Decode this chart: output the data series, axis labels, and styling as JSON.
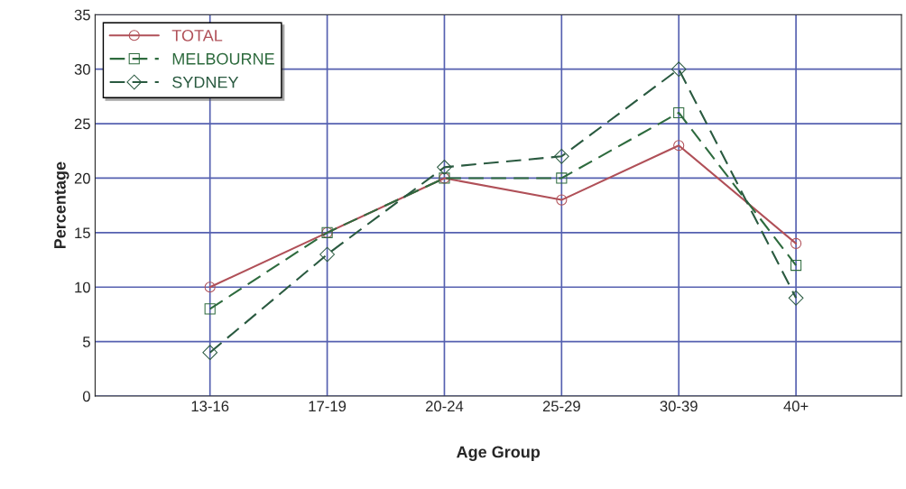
{
  "chart_data": {
    "type": "line",
    "xlabel": "Age Group",
    "ylabel": "Percentage",
    "categories": [
      "13-16",
      "17-19",
      "20-24",
      "25-29",
      "30-39",
      "40+"
    ],
    "series": [
      {
        "name": "TOTAL",
        "color": "#b05058",
        "marker": "circle",
        "line_style": "solid",
        "values": [
          10,
          15,
          20,
          18,
          23,
          14
        ]
      },
      {
        "name": "MELBOURNE",
        "color": "#2e6b3e",
        "marker": "square",
        "line_style": "dashed",
        "values": [
          8,
          15,
          20,
          20,
          26,
          12
        ]
      },
      {
        "name": "SYDNEY",
        "color": "#2a5a40",
        "marker": "diamond",
        "line_style": "dashed",
        "values": [
          4,
          13,
          21,
          22,
          30,
          9
        ]
      }
    ],
    "ylim": [
      0,
      35
    ],
    "yticks": [
      0,
      5,
      10,
      15,
      20,
      25,
      30,
      35
    ],
    "grid": true,
    "legend": "top left"
  }
}
